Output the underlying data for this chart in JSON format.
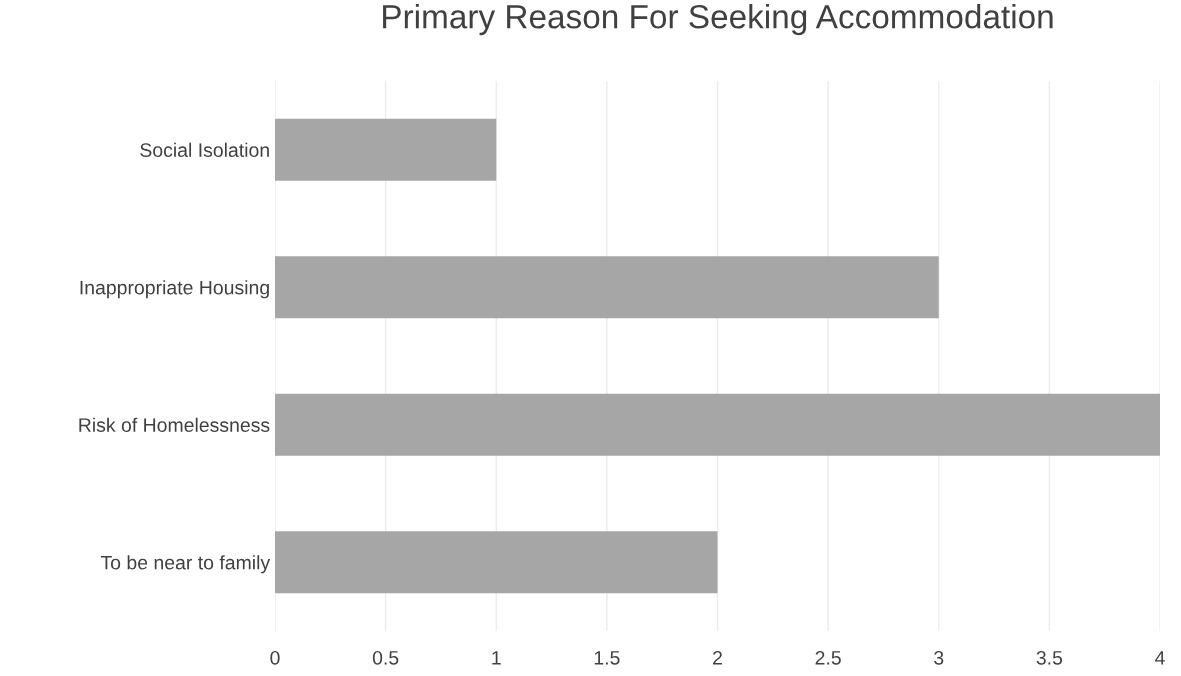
{
  "chart_data": {
    "type": "bar",
    "orientation": "horizontal",
    "title": "Primary Reason For Seeking Accommodation",
    "categories": [
      "Social Isolation",
      "Inappropriate Housing",
      "Risk of Homelessness",
      "To be near to family"
    ],
    "values": [
      1,
      3,
      4,
      2
    ],
    "color": "#a6a6a6",
    "xlim": [
      0,
      4
    ],
    "xticks": [
      0,
      0.5,
      1,
      1.5,
      2,
      2.5,
      3,
      3.5,
      4
    ],
    "grid": "x",
    "legend": false
  }
}
